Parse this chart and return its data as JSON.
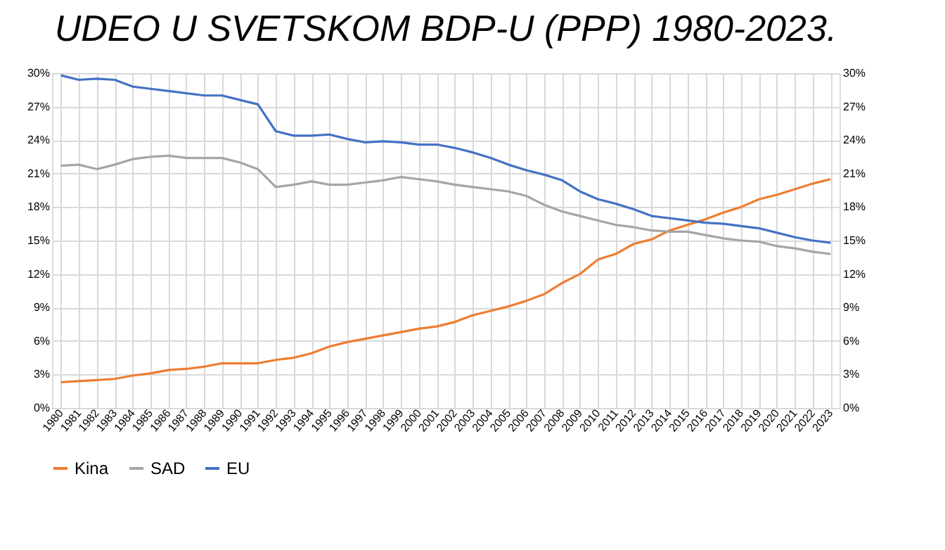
{
  "chart_data": {
    "type": "line",
    "title": "UDEO U SVETSKOM BDP-U (PPP) 1980-2023.",
    "categories": [
      "1980",
      "1981",
      "1982",
      "1983",
      "1984",
      "1985",
      "1986",
      "1987",
      "1988",
      "1989",
      "1990",
      "1991",
      "1992",
      "1993",
      "1994",
      "1995",
      "1996",
      "1997",
      "1998",
      "1999",
      "2000",
      "2001",
      "2002",
      "2003",
      "2004",
      "2005",
      "2006",
      "2007",
      "2008",
      "2009",
      "2010",
      "2011",
      "2012",
      "2013",
      "2014",
      "2015",
      "2016",
      "2017",
      "2018",
      "2019",
      "2020",
      "2021",
      "2022",
      "2023"
    ],
    "series": [
      {
        "name": "Kina",
        "color": "#ed7d31",
        "values": [
          2.3,
          2.4,
          2.5,
          2.6,
          2.9,
          3.1,
          3.4,
          3.5,
          3.7,
          4.0,
          4.0,
          4.0,
          4.3,
          4.5,
          4.9,
          5.5,
          5.9,
          6.2,
          6.5,
          6.8,
          7.1,
          7.3,
          7.7,
          8.3,
          8.7,
          9.1,
          9.6,
          10.2,
          11.2,
          12.0,
          13.3,
          13.8,
          14.7,
          15.1,
          15.9,
          16.4,
          16.9,
          17.5,
          18.0,
          18.7,
          19.1,
          19.6,
          20.1,
          20.5
        ]
      },
      {
        "name": "SAD",
        "color": "#a5a5a5",
        "values": [
          21.7,
          21.8,
          21.4,
          21.8,
          22.3,
          22.5,
          22.6,
          22.4,
          22.4,
          22.4,
          22.0,
          21.4,
          19.8,
          20.0,
          20.3,
          20.0,
          20.0,
          20.2,
          20.4,
          20.7,
          20.5,
          20.3,
          20.0,
          19.8,
          19.6,
          19.4,
          19.0,
          18.2,
          17.6,
          17.2,
          16.8,
          16.4,
          16.2,
          15.9,
          15.8,
          15.8,
          15.5,
          15.2,
          15.0,
          14.9,
          14.5,
          14.3,
          14.0,
          13.8
        ]
      },
      {
        "name": "EU",
        "color": "#4472c4",
        "values": [
          29.8,
          29.4,
          29.5,
          29.4,
          28.8,
          28.6,
          28.4,
          28.2,
          28.0,
          28.0,
          27.6,
          27.2,
          24.8,
          24.4,
          24.4,
          24.5,
          24.1,
          23.8,
          23.9,
          23.8,
          23.6,
          23.6,
          23.3,
          22.9,
          22.4,
          21.8,
          21.3,
          20.9,
          20.4,
          19.4,
          18.7,
          18.3,
          17.8,
          17.2,
          17.0,
          16.8,
          16.6,
          16.5,
          16.3,
          16.1,
          15.7,
          15.3,
          15.0,
          14.8
        ]
      }
    ],
    "ylim": [
      0,
      30
    ],
    "yticks": [
      {
        "value": 0,
        "label": "0%"
      },
      {
        "value": 3,
        "label": "3%"
      },
      {
        "value": 6,
        "label": "6%"
      },
      {
        "value": 9,
        "label": "9%"
      },
      {
        "value": 12,
        "label": "12%"
      },
      {
        "value": 15,
        "label": "15%"
      },
      {
        "value": 18,
        "label": "18%"
      },
      {
        "value": 21,
        "label": "21%"
      },
      {
        "value": 24,
        "label": "24%"
      },
      {
        "value": 27,
        "label": "27%"
      },
      {
        "value": 30,
        "label": "30%"
      }
    ],
    "y2lim": [
      0,
      30
    ],
    "y2ticks": [
      {
        "value": 0,
        "label": "0%"
      },
      {
        "value": 3,
        "label": "3%"
      },
      {
        "value": 6,
        "label": "6%"
      },
      {
        "value": 9,
        "label": "9%"
      },
      {
        "value": 12,
        "label": "12%"
      },
      {
        "value": 15,
        "label": "15%"
      },
      {
        "value": 18,
        "label": "18%"
      },
      {
        "value": 21,
        "label": "21%"
      },
      {
        "value": 24,
        "label": "24%"
      },
      {
        "value": 27,
        "label": "27%"
      },
      {
        "value": 30,
        "label": "30%"
      }
    ],
    "grid": true,
    "legend": "bottom",
    "marker": "none",
    "line_style": "solid"
  }
}
